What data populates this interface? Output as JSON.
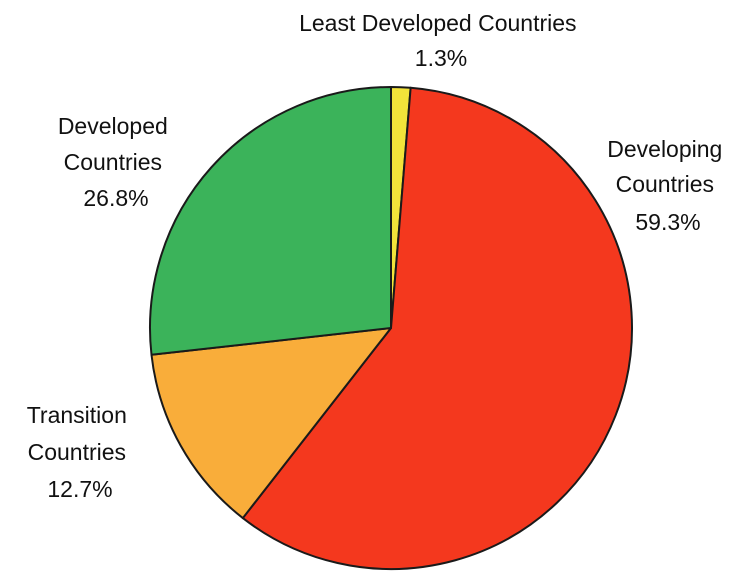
{
  "chart_data": {
    "type": "pie",
    "slices": [
      {
        "label": [
          "Least Developed Countries"
        ],
        "percent_label": "1.3%",
        "value": 1.3,
        "color": "#f2e33a"
      },
      {
        "label": [
          "Developing",
          "Countries"
        ],
        "percent_label": "59.3%",
        "value": 59.3,
        "color": "#f4381e"
      },
      {
        "label": [
          "Transition",
          "Countries"
        ],
        "percent_label": "12.7%",
        "value": 12.7,
        "color": "#f9ad3a"
      },
      {
        "label": [
          "Developed",
          "Countries"
        ],
        "percent_label": "26.8%",
        "value": 26.8,
        "color": "#3bb35a"
      }
    ],
    "start_angle_deg": 0,
    "direction": "clockwise"
  }
}
